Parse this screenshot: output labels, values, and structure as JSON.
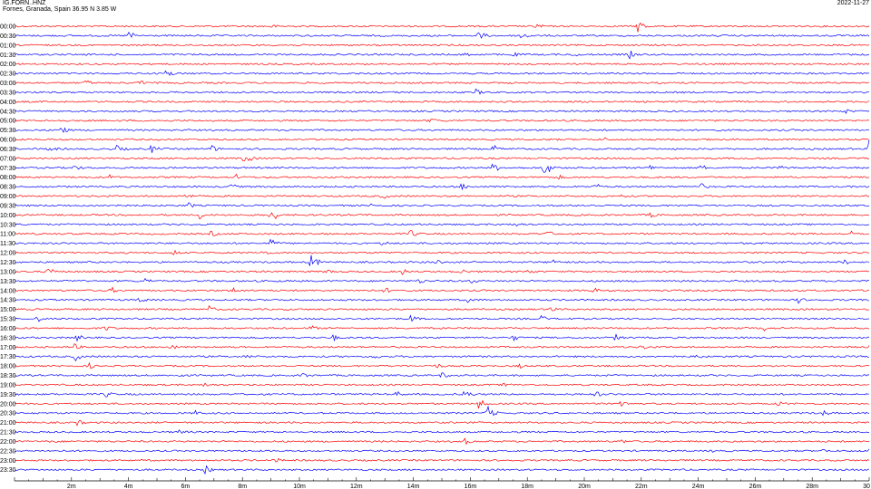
{
  "header": {
    "station_id": "IG.FORN..HNZ",
    "location": "Fornes, Granada, Spain  36.95 N 3.85 W",
    "date": "2022-11-27"
  },
  "chart_data": {
    "type": "helicorder",
    "title": "",
    "row_labels": [
      "00:00",
      "00:30",
      "01:00",
      "01:30",
      "02:00",
      "02:30",
      "03:00",
      "03:30",
      "04:00",
      "04:30",
      "05:00",
      "05:30",
      "06:00",
      "06:30",
      "07:00",
      "07:30",
      "08:00",
      "08:30",
      "09:00",
      "09:30",
      "10:00",
      "10:30",
      "11:00",
      "11:30",
      "12:00",
      "12:30",
      "13:00",
      "13:30",
      "14:00",
      "14:30",
      "15:00",
      "15:30",
      "16:00",
      "16:30",
      "17:00",
      "17:30",
      "18:00",
      "18:30",
      "19:00",
      "19:30",
      "20:00",
      "20:30",
      "21:00",
      "21:30",
      "22:00",
      "22:30",
      "23:00",
      "23:30"
    ],
    "x_ticks": [
      "2m",
      "4m",
      "6m",
      "8m",
      "10m",
      "12m",
      "14m",
      "16m",
      "18m",
      "20m",
      "22m",
      "24m",
      "26m",
      "28m",
      "30"
    ],
    "xlim": [
      0,
      30
    ],
    "colors": {
      "even_rows": "#ff0000",
      "odd_rows": "#0000ff",
      "axis": "#000000"
    },
    "events": [
      {
        "row": 0,
        "minute": 9.0,
        "amp": 3
      },
      {
        "row": 0,
        "minute": 18.3,
        "amp": 4
      },
      {
        "row": 0,
        "minute": 21.9,
        "amp": 9
      },
      {
        "row": 1,
        "minute": 4.0,
        "amp": 6
      },
      {
        "row": 1,
        "minute": 16.3,
        "amp": 6
      },
      {
        "row": 1,
        "minute": 17.8,
        "amp": 6
      },
      {
        "row": 3,
        "minute": 15.8,
        "amp": 3
      },
      {
        "row": 3,
        "minute": 17.5,
        "amp": 3
      },
      {
        "row": 3,
        "minute": 19.6,
        "amp": 3
      },
      {
        "row": 3,
        "minute": 21.6,
        "amp": 5
      },
      {
        "row": 5,
        "minute": 5.3,
        "amp": 6
      },
      {
        "row": 6,
        "minute": 2.5,
        "amp": 4
      },
      {
        "row": 6,
        "minute": 4.4,
        "amp": 4
      },
      {
        "row": 7,
        "minute": 16.2,
        "amp": 4
      },
      {
        "row": 9,
        "minute": 29.2,
        "amp": 3
      },
      {
        "row": 10,
        "minute": 14.6,
        "amp": 4
      },
      {
        "row": 11,
        "minute": 1.6,
        "amp": 6
      },
      {
        "row": 12,
        "minute": 20.7,
        "amp": 3
      },
      {
        "row": 13,
        "minute": 1.2,
        "amp": 5
      },
      {
        "row": 13,
        "minute": 3.6,
        "amp": 5
      },
      {
        "row": 13,
        "minute": 4.8,
        "amp": 5
      },
      {
        "row": 13,
        "minute": 6.9,
        "amp": 5
      },
      {
        "row": 13,
        "minute": 16.8,
        "amp": 5
      },
      {
        "row": 13,
        "minute": 30.0,
        "amp": 10
      },
      {
        "row": 14,
        "minute": 8.0,
        "amp": 5
      },
      {
        "row": 14,
        "minute": 8.2,
        "amp": 4
      },
      {
        "row": 15,
        "minute": 2.1,
        "amp": 4
      },
      {
        "row": 15,
        "minute": 16.8,
        "amp": 6
      },
      {
        "row": 15,
        "minute": 18.6,
        "amp": 10
      },
      {
        "row": 15,
        "minute": 22.3,
        "amp": 4
      },
      {
        "row": 15,
        "minute": 24.1,
        "amp": 4
      },
      {
        "row": 15,
        "minute": 26.9,
        "amp": 4
      },
      {
        "row": 16,
        "minute": 3.3,
        "amp": 4
      },
      {
        "row": 16,
        "minute": 7.8,
        "amp": 4
      },
      {
        "row": 16,
        "minute": 19.1,
        "amp": 3
      },
      {
        "row": 17,
        "minute": 7.6,
        "amp": 4
      },
      {
        "row": 17,
        "minute": 15.7,
        "amp": 5
      },
      {
        "row": 17,
        "minute": 20.4,
        "amp": 4
      },
      {
        "row": 17,
        "minute": 24.1,
        "amp": 4
      },
      {
        "row": 18,
        "minute": 6.0,
        "amp": 4
      },
      {
        "row": 18,
        "minute": 12.9,
        "amp": 4
      },
      {
        "row": 18,
        "minute": 21.3,
        "amp": 3
      },
      {
        "row": 19,
        "minute": 3.6,
        "amp": 4
      },
      {
        "row": 19,
        "minute": 6.1,
        "amp": 4
      },
      {
        "row": 19,
        "minute": 12.5,
        "amp": 3
      },
      {
        "row": 20,
        "minute": 6.5,
        "amp": 5
      },
      {
        "row": 20,
        "minute": 9.0,
        "amp": 9
      },
      {
        "row": 20,
        "minute": 22.3,
        "amp": 4
      },
      {
        "row": 21,
        "minute": 17.6,
        "amp": 4
      },
      {
        "row": 22,
        "minute": 6.9,
        "amp": 4
      },
      {
        "row": 22,
        "minute": 13.9,
        "amp": 5
      },
      {
        "row": 22,
        "minute": 18.7,
        "amp": 4
      },
      {
        "row": 22,
        "minute": 29.4,
        "amp": 4
      },
      {
        "row": 23,
        "minute": 9.0,
        "amp": 6
      },
      {
        "row": 23,
        "minute": 12.9,
        "amp": 4
      },
      {
        "row": 24,
        "minute": 5.6,
        "amp": 4
      },
      {
        "row": 24,
        "minute": 8.7,
        "amp": 4
      },
      {
        "row": 25,
        "minute": 10.4,
        "amp": 9
      },
      {
        "row": 25,
        "minute": 14.8,
        "amp": 4
      },
      {
        "row": 25,
        "minute": 18.9,
        "amp": 4
      },
      {
        "row": 25,
        "minute": 29.1,
        "amp": 4
      },
      {
        "row": 26,
        "minute": 1.2,
        "amp": 5
      },
      {
        "row": 26,
        "minute": 11.0,
        "amp": 4
      },
      {
        "row": 26,
        "minute": 13.6,
        "amp": 4
      },
      {
        "row": 26,
        "minute": 15.7,
        "amp": 4
      },
      {
        "row": 26,
        "minute": 18.0,
        "amp": 4
      },
      {
        "row": 27,
        "minute": 4.6,
        "amp": 4
      },
      {
        "row": 27,
        "minute": 14.2,
        "amp": 4
      },
      {
        "row": 27,
        "minute": 16.0,
        "amp": 4
      },
      {
        "row": 28,
        "minute": 3.4,
        "amp": 4
      },
      {
        "row": 28,
        "minute": 7.7,
        "amp": 4
      },
      {
        "row": 28,
        "minute": 13.0,
        "amp": 4
      },
      {
        "row": 28,
        "minute": 20.3,
        "amp": 4
      },
      {
        "row": 29,
        "minute": 4.4,
        "amp": 4
      },
      {
        "row": 29,
        "minute": 15.9,
        "amp": 4
      },
      {
        "row": 29,
        "minute": 27.5,
        "amp": 4
      },
      {
        "row": 30,
        "minute": 6.8,
        "amp": 5
      },
      {
        "row": 30,
        "minute": 18.8,
        "amp": 4
      },
      {
        "row": 31,
        "minute": 0.8,
        "amp": 4
      },
      {
        "row": 31,
        "minute": 13.9,
        "amp": 5
      },
      {
        "row": 31,
        "minute": 18.5,
        "amp": 4
      },
      {
        "row": 32,
        "minute": 3.2,
        "amp": 4
      },
      {
        "row": 32,
        "minute": 10.4,
        "amp": 4
      },
      {
        "row": 32,
        "minute": 26.3,
        "amp": 4
      },
      {
        "row": 33,
        "minute": 2.2,
        "amp": 4
      },
      {
        "row": 33,
        "minute": 11.2,
        "amp": 4
      },
      {
        "row": 33,
        "minute": 17.5,
        "amp": 4
      },
      {
        "row": 33,
        "minute": 21.1,
        "amp": 4
      },
      {
        "row": 34,
        "minute": 2.1,
        "amp": 4
      },
      {
        "row": 34,
        "minute": 5.5,
        "amp": 4
      },
      {
        "row": 34,
        "minute": 22.0,
        "amp": 4
      },
      {
        "row": 34,
        "minute": 30.0,
        "amp": 4
      },
      {
        "row": 35,
        "minute": 2.1,
        "amp": 6
      },
      {
        "row": 35,
        "minute": 8.1,
        "amp": 4
      },
      {
        "row": 35,
        "minute": 12.6,
        "amp": 4
      },
      {
        "row": 35,
        "minute": 23.9,
        "amp": 4
      },
      {
        "row": 36,
        "minute": 2.6,
        "amp": 4
      },
      {
        "row": 36,
        "minute": 14.8,
        "amp": 4
      },
      {
        "row": 36,
        "minute": 17.7,
        "amp": 4
      },
      {
        "row": 37,
        "minute": 5.8,
        "amp": 4
      },
      {
        "row": 37,
        "minute": 10.1,
        "amp": 4
      },
      {
        "row": 37,
        "minute": 15.0,
        "amp": 4
      },
      {
        "row": 38,
        "minute": 6.7,
        "amp": 4
      },
      {
        "row": 38,
        "minute": 17.2,
        "amp": 4
      },
      {
        "row": 39,
        "minute": 3.2,
        "amp": 4
      },
      {
        "row": 39,
        "minute": 13.4,
        "amp": 4
      },
      {
        "row": 39,
        "minute": 15.8,
        "amp": 7
      },
      {
        "row": 39,
        "minute": 20.4,
        "amp": 4
      },
      {
        "row": 40,
        "minute": 16.3,
        "amp": 6
      },
      {
        "row": 40,
        "minute": 21.3,
        "amp": 4
      },
      {
        "row": 40,
        "minute": 26.8,
        "amp": 4
      },
      {
        "row": 41,
        "minute": 6.3,
        "amp": 4
      },
      {
        "row": 41,
        "minute": 16.6,
        "amp": 8
      },
      {
        "row": 41,
        "minute": 28.4,
        "amp": 4
      },
      {
        "row": 42,
        "minute": 2.2,
        "amp": 4
      },
      {
        "row": 43,
        "minute": 5.8,
        "amp": 4
      },
      {
        "row": 44,
        "minute": 1.3,
        "amp": 3
      },
      {
        "row": 44,
        "minute": 15.8,
        "amp": 4
      },
      {
        "row": 44,
        "minute": 21.3,
        "amp": 3
      },
      {
        "row": 45,
        "minute": 24.5,
        "amp": 3
      },
      {
        "row": 45,
        "minute": 28.4,
        "amp": 3
      },
      {
        "row": 45,
        "minute": 30.0,
        "amp": 3
      },
      {
        "row": 46,
        "minute": 9.2,
        "amp": 3
      },
      {
        "row": 47,
        "minute": 6.7,
        "amp": 5
      }
    ]
  }
}
